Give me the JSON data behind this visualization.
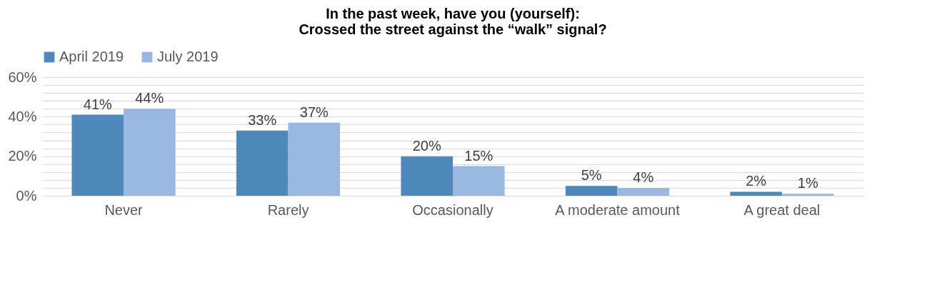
{
  "chart_data": {
    "type": "bar",
    "title": "In the past week, have you (yourself):\nCrossed the street against the “walk” signal?",
    "categories": [
      "Never",
      "Rarely",
      "Occasionally",
      "A moderate amount",
      "A great deal"
    ],
    "series": [
      {
        "name": "April 2019",
        "color": "#4f88bb",
        "values": [
          41,
          33,
          20,
          5,
          2
        ],
        "value_labels": [
          "41%",
          "33%",
          "20%",
          "5%",
          "2%"
        ]
      },
      {
        "name": "July 2019",
        "color": "#98b8df",
        "values": [
          44,
          37,
          15,
          4,
          1
        ],
        "value_labels": [
          "44%",
          "37%",
          "15%",
          "4%",
          "1%"
        ]
      }
    ],
    "ylim": [
      0,
      60
    ],
    "yticks": [
      {
        "value": 0,
        "label": "0%"
      },
      {
        "value": 4,
        "label": null
      },
      {
        "value": 8,
        "label": null
      },
      {
        "value": 12,
        "label": null
      },
      {
        "value": 16,
        "label": null
      },
      {
        "value": 20,
        "label": "20%"
      },
      {
        "value": 24,
        "label": null
      },
      {
        "value": 28,
        "label": null
      },
      {
        "value": 32,
        "label": null
      },
      {
        "value": 36,
        "label": null
      },
      {
        "value": 40,
        "label": "40%"
      },
      {
        "value": 44,
        "label": null
      },
      {
        "value": 48,
        "label": null
      },
      {
        "value": 52,
        "label": null
      },
      {
        "value": 56,
        "label": null
      },
      {
        "value": 60,
        "label": "60%"
      }
    ],
    "grid": "y",
    "legend": "top"
  }
}
